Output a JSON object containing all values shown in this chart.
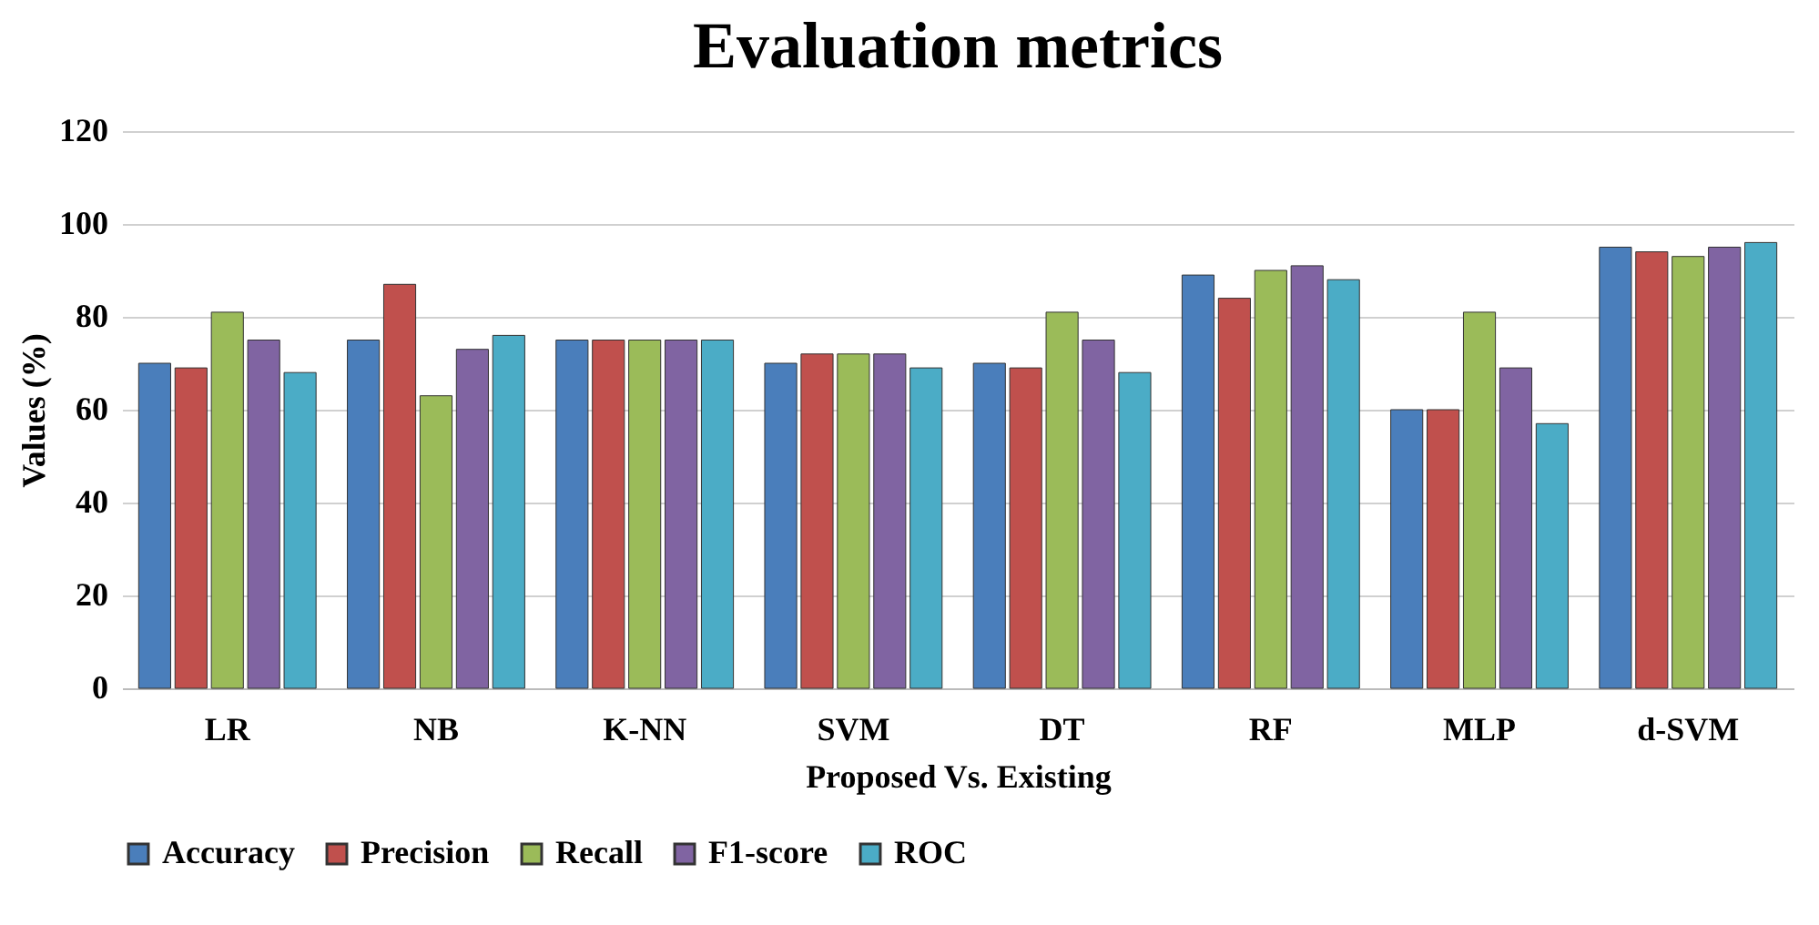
{
  "chart_data": {
    "type": "bar",
    "title": "Evaluation metrics",
    "xlabel": "Proposed Vs. Existing",
    "ylabel": "Values (%)",
    "categories": [
      "LR",
      "NB",
      "K-NN",
      "SVM",
      "DT",
      "RF",
      "MLP",
      "d-SVM"
    ],
    "series": [
      {
        "name": "Accuracy",
        "color": "#4a7ebb",
        "values": [
          70,
          75,
          75,
          70,
          70,
          89,
          60,
          95
        ]
      },
      {
        "name": "Precision",
        "color": "#c0504d",
        "values": [
          69,
          87,
          75,
          72,
          69,
          84,
          60,
          94
        ]
      },
      {
        "name": "Recall",
        "color": "#9bbb59",
        "values": [
          81,
          63,
          75,
          72,
          81,
          90,
          81,
          93
        ]
      },
      {
        "name": "F1-score",
        "color": "#8064a2",
        "values": [
          75,
          73,
          75,
          72,
          75,
          91,
          69,
          95
        ]
      },
      {
        "name": "ROC",
        "color": "#4bacc6",
        "values": [
          68,
          76,
          75,
          69,
          68,
          88,
          57,
          96
        ]
      }
    ],
    "ylim": [
      0,
      120
    ],
    "yticks": [
      0,
      20,
      40,
      60,
      80,
      100,
      120
    ],
    "grid": "y",
    "legend": "bottom"
  }
}
